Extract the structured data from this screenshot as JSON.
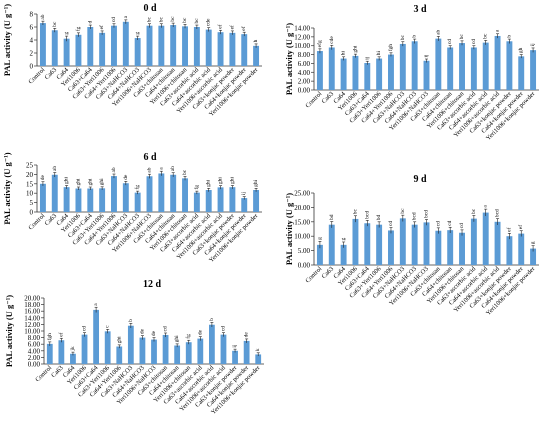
{
  "figure": {
    "ylabel": "PAL activity (U g⁻¹)",
    "categories": [
      "Control",
      "Ca63",
      "Ca64",
      "Yeri1006",
      "Ca63+Ca64",
      "Ca63+Yeri1006",
      "Ca64+Yeri1006",
      "Ca63+NaHCO3",
      "Ca64+NaHCO3",
      "Yeri1006+NaHCO3",
      "Ca63+chitosan",
      "Ca64+chitosan",
      "Yeri1006+chitosan",
      "Ca63+ascorbic acid",
      "Ca64+ascorbic acid",
      "Yeri1006+ascorbic acid",
      "Ca63+konjac powder",
      "Ca64+konjac powder",
      "Yeri1006+konjac powder"
    ],
    "bar_color": "#5B9BD5"
  },
  "chart_data": [
    {
      "type": "bar",
      "title": "0 d",
      "ylim": [
        0,
        8
      ],
      "yticks": [
        0,
        2,
        4,
        6,
        8
      ],
      "decimals": 0,
      "values": [
        6.6,
        5.5,
        4.2,
        4.8,
        6.0,
        5.1,
        6.2,
        6.8,
        4.3,
        6.2,
        6.2,
        6.3,
        6.1,
        6.0,
        5.6,
        5.2,
        5.1,
        4.9,
        3.1
      ],
      "errors": [
        0.3,
        0.3,
        0.4,
        0.3,
        0.3,
        0.3,
        0.3,
        0.3,
        0.3,
        0.3,
        0.3,
        0.3,
        0.3,
        0.3,
        0.3,
        0.3,
        0.3,
        0.3,
        0.3
      ],
      "letters": [
        "ab",
        "bc",
        "g",
        "fg",
        "d",
        "ef",
        "cd",
        "a",
        "g",
        "bc",
        "bc",
        "bc",
        "bc",
        "bc",
        "cde",
        "ef",
        "ef",
        "ef",
        "h"
      ]
    },
    {
      "type": "bar",
      "title": "3 d",
      "ylim": [
        0,
        14
      ],
      "yticks": [
        0,
        2,
        4,
        6,
        8,
        10,
        12,
        14
      ],
      "decimals": 2,
      "values": [
        8.8,
        9.6,
        7.1,
        7.7,
        6.1,
        7.1,
        8.0,
        10.4,
        11.0,
        6.6,
        11.6,
        9.6,
        10.6,
        9.6,
        10.7,
        12.2,
        11.0,
        7.6,
        9.0
      ],
      "errors": [
        0.5,
        0.5,
        0.4,
        0.4,
        0.4,
        0.4,
        0.4,
        0.5,
        0.5,
        0.4,
        0.5,
        0.4,
        0.5,
        0.4,
        0.5,
        0.5,
        0.5,
        0.4,
        0.5
      ],
      "letters": [
        "efg",
        "cde",
        "hi",
        "ghi",
        "ij",
        "hi",
        "fgh",
        "bc",
        "b",
        "ij",
        "ab",
        "cd",
        "bc",
        "cd",
        "bc",
        "a",
        "b",
        "gh",
        "ij"
      ]
    },
    {
      "type": "bar",
      "title": "6 d",
      "ylim": [
        0,
        25
      ],
      "yticks": [
        0,
        5,
        10,
        15,
        20,
        25
      ],
      "decimals": 0,
      "values": [
        15.0,
        19.8,
        13.2,
        12.5,
        12.5,
        12.6,
        19.1,
        15.3,
        10.3,
        19.0,
        20.5,
        19.8,
        17.9,
        10.3,
        11.7,
        13.1,
        13.2,
        7.4,
        11.7
      ],
      "errors": [
        1.1,
        1.2,
        0.9,
        0.8,
        0.8,
        0.8,
        1.1,
        1.0,
        0.8,
        1.1,
        1.2,
        1.1,
        1.0,
        0.8,
        0.9,
        0.9,
        0.9,
        0.8,
        0.9
      ],
      "letters": [
        "de",
        "ab",
        "ghi",
        "ghi",
        "ghi",
        "ghi",
        "ab",
        "de",
        "fg",
        "ab",
        "a",
        "ab",
        "bc",
        "fg",
        "ghi",
        "ghi",
        "ghi",
        "ij",
        "ghi"
      ]
    },
    {
      "type": "bar",
      "title": "9 d",
      "ylim": [
        0,
        25
      ],
      "yticks": [
        0,
        5,
        10,
        15,
        20,
        25
      ],
      "decimals": 2,
      "values": [
        7.0,
        14.0,
        7.0,
        16.0,
        14.5,
        14.0,
        12.0,
        16.2,
        14.0,
        14.8,
        11.9,
        12.1,
        11.2,
        16.1,
        18.2,
        15.0,
        10.0,
        10.9,
        5.7
      ],
      "errors": [
        1.2,
        1.1,
        1.0,
        1.1,
        1.0,
        1.0,
        1.0,
        1.1,
        1.0,
        1.0,
        1.0,
        1.0,
        1.0,
        1.1,
        1.2,
        1.1,
        1.0,
        1.0,
        1.0
      ],
      "letters": [
        "g",
        "bd",
        "g",
        "bc",
        "bcd",
        "bd",
        "cd",
        "bc",
        "bcd",
        "bcd",
        "cd",
        "cd",
        "cd",
        "bc",
        "a",
        "bcd",
        "ef",
        "ef",
        "g"
      ]
    },
    {
      "type": "bar",
      "title": "12 d",
      "ylim": [
        0,
        20
      ],
      "yticks": [
        0,
        2,
        4,
        6,
        8,
        10,
        12,
        14,
        16,
        18,
        20
      ],
      "decimals": 2,
      "values": [
        6.1,
        7.2,
        3.1,
        8.9,
        16.4,
        9.9,
        5.3,
        11.6,
        8.0,
        7.4,
        8.8,
        5.6,
        6.6,
        7.7,
        11.9,
        8.9,
        4.0,
        7.0,
        2.9
      ],
      "errors": [
        0.6,
        0.6,
        0.5,
        0.6,
        0.8,
        0.6,
        0.5,
        0.7,
        0.6,
        0.6,
        0.6,
        0.5,
        0.6,
        0.6,
        0.7,
        0.6,
        0.5,
        0.6,
        0.5
      ],
      "letters": [
        "fgh",
        "ef",
        "jk",
        "cd",
        "a",
        "c",
        "ghi",
        "b",
        "de",
        "de",
        "cd",
        "ghi",
        "fg",
        "de",
        "b",
        "cd",
        "ij",
        "de",
        "k"
      ]
    }
  ]
}
